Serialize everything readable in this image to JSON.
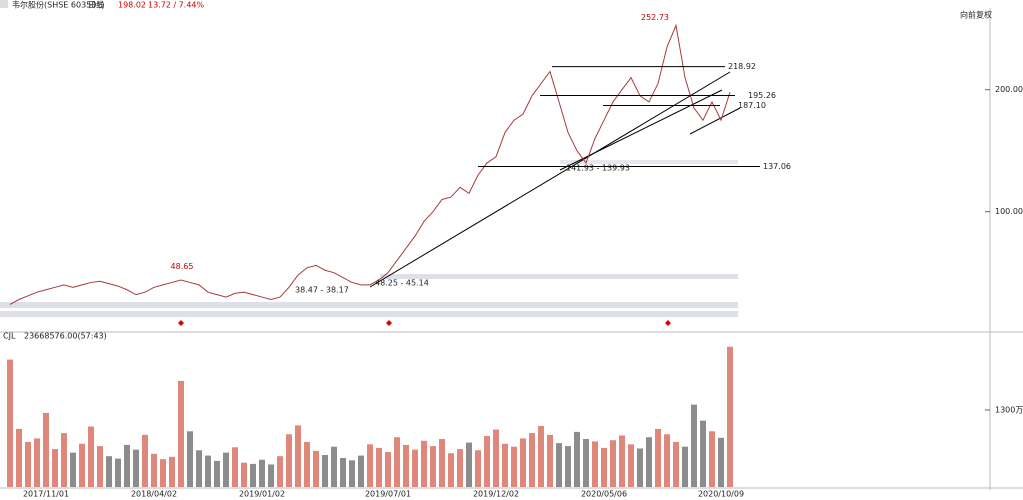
{
  "header": {
    "symbol": "韦尔股份(SHSE 603501)",
    "period": "日线",
    "price": "198.02",
    "change": "13.72 / 7.44%",
    "adjust": "向前复权"
  },
  "chart_data": [
    {
      "type": "line",
      "color": "#a83a3a",
      "values": [
        24,
        28,
        31,
        34,
        36,
        38,
        40,
        38,
        40,
        42,
        43,
        41,
        39,
        36,
        32,
        34,
        38,
        40,
        42,
        44,
        42,
        40,
        34,
        32,
        30,
        33,
        34,
        32,
        30,
        28,
        30,
        38,
        48,
        54,
        56,
        52,
        50,
        46,
        42,
        40,
        40,
        44,
        50,
        60,
        70,
        80,
        92,
        100,
        110,
        112,
        120,
        115,
        130,
        140,
        145,
        165,
        175,
        180,
        195,
        205,
        215,
        190,
        165,
        150,
        140,
        160,
        175,
        190,
        200,
        210,
        195,
        190,
        205,
        235,
        252.73,
        210,
        185,
        175,
        190,
        175,
        198.02
      ],
      "ylim": [
        3,
        267
      ],
      "yticks": [
        {
          "value": 100,
          "label": "100.00"
        },
        {
          "value": 200,
          "label": "200.00"
        }
      ],
      "levels": [
        {
          "value": 218.92,
          "label": "218.92"
        },
        {
          "value": 195.26,
          "label": "195.26"
        },
        {
          "value": 187.1,
          "label": "187.10"
        },
        {
          "value": 137.06,
          "label": "137.06"
        }
      ],
      "annotations": [
        {
          "value": 252.73,
          "label": "252.73"
        },
        {
          "value": 48.65,
          "label": "48.65"
        }
      ],
      "range_labels": [
        "38.47 - 38.17",
        "48.25 - 45.14",
        "141.93 - 139.93"
      ]
    },
    {
      "type": "bar",
      "title": "CJL",
      "subtitle": "23668576.00(57:43)",
      "color": "#e0877b",
      "down_color": "#8c8c8c",
      "categories": [
        null,
        null,
        null,
        null,
        "2017/11/01",
        null,
        null,
        null,
        null,
        null,
        null,
        null,
        null,
        null,
        null,
        null,
        "2018/04/02",
        null,
        null,
        null,
        null,
        null,
        null,
        null,
        null,
        null,
        null,
        null,
        "2019/01/02",
        null,
        null,
        null,
        null,
        null,
        null,
        null,
        null,
        null,
        null,
        null,
        null,
        null,
        "2019/07/01",
        null,
        null,
        null,
        null,
        null,
        null,
        null,
        null,
        null,
        null,
        null,
        "2019/12/02",
        null,
        null,
        null,
        null,
        null,
        null,
        null,
        null,
        null,
        null,
        null,
        "2020/05/06",
        null,
        null,
        null,
        null,
        null,
        null,
        null,
        null,
        null,
        null,
        null,
        null,
        "2020/10/09",
        null
      ],
      "values": [
        21500000,
        9800000,
        7600000,
        8200000,
        12500000,
        6400000,
        9100000,
        5800000,
        7300000,
        10200000,
        6900000,
        5200000,
        4800000,
        7100000,
        6300000,
        8800000,
        5600000,
        4700000,
        5100000,
        17900000,
        9400000,
        6200000,
        5300000,
        4400000,
        5800000,
        6700000,
        4100000,
        3900000,
        4600000,
        3800000,
        5200000,
        8900000,
        10400000,
        7600000,
        6100000,
        5400000,
        6800000,
        4900000,
        4500000,
        5300000,
        7200000,
        6600000,
        5900000,
        8400000,
        7100000,
        6300000,
        7800000,
        6900000,
        8100000,
        5700000,
        6400000,
        7500000,
        6200000,
        8600000,
        9700000,
        7300000,
        6800000,
        8200000,
        9100000,
        10300000,
        8800000,
        7400000,
        6900000,
        9300000,
        8100000,
        7700000,
        6600000,
        7900000,
        8700000,
        7200000,
        6500000,
        8400000,
        9800000,
        8900000,
        7600000,
        6800000,
        13900000,
        11200000,
        9400000,
        8300000,
        23668576
      ],
      "ylim": [
        0,
        24300000
      ],
      "yticks": [
        {
          "value": 13000000,
          "label": "1300万"
        }
      ]
    }
  ]
}
